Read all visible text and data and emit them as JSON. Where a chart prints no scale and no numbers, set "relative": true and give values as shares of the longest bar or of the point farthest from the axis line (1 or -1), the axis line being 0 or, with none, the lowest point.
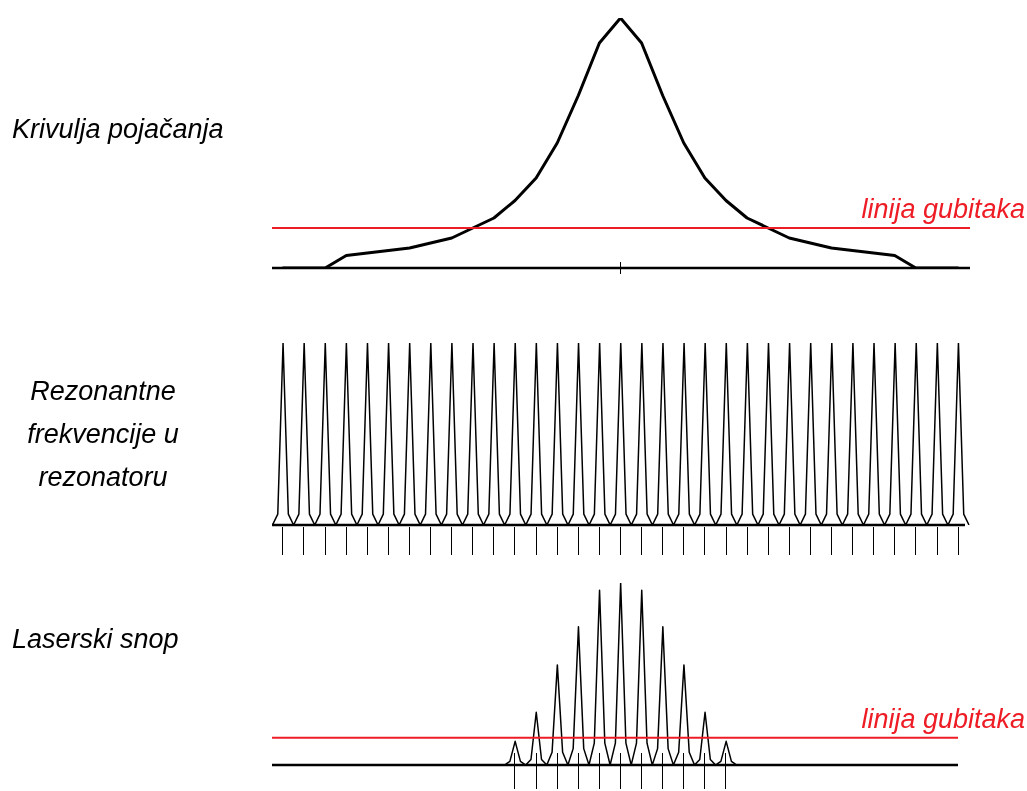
{
  "chart_data": [
    {
      "type": "line",
      "ylabel": "Krivulja pojačanja",
      "relative": true,
      "marker": "none",
      "categories": [
        null,
        null,
        null,
        null,
        null,
        null,
        null,
        null,
        null,
        null,
        null,
        null,
        null,
        null,
        null,
        null,
        null,
        null,
        null,
        null,
        null,
        null,
        null,
        null,
        null,
        null,
        null,
        null,
        null,
        null,
        null,
        null,
        null
      ],
      "series": [
        {
          "color": "#000000",
          "values": [
            0,
            0,
            0,
            0.05,
            0.06,
            0.07,
            0.08,
            0.1,
            0.12,
            0.16,
            0.2,
            0.27,
            0.36,
            0.5,
            0.69,
            0.9,
            1,
            0.9,
            0.69,
            0.5,
            0.36,
            0.27,
            0.2,
            0.16,
            0.12,
            0.1,
            0.08,
            0.07,
            0.06,
            0.05,
            0,
            0,
            0
          ]
        }
      ],
      "ref_lines": [
        {
          "axis": "y",
          "value": 0.16,
          "label": "linija gubitaka",
          "color": "#ee1c25"
        }
      ]
    },
    {
      "type": "line",
      "ylabel": "Rezonantne frekvencije u rezonatoru",
      "relative": true,
      "marker": "none",
      "categories": [
        null,
        null,
        null,
        null,
        null,
        null,
        null,
        null,
        null,
        null,
        null,
        null,
        null,
        null,
        null,
        null,
        null,
        null,
        null,
        null,
        null,
        null,
        null,
        null,
        null,
        null,
        null,
        null,
        null,
        null,
        null,
        null,
        null,
        null,
        null,
        null,
        null,
        null,
        null,
        null,
        null,
        null,
        null,
        null,
        null,
        null,
        null,
        null,
        null,
        null,
        null,
        null,
        null,
        null,
        null,
        null,
        null,
        null,
        null,
        null,
        null,
        null,
        null,
        null,
        null,
        null,
        null,
        null,
        null,
        null,
        null,
        null,
        null,
        null,
        null,
        null,
        null,
        null,
        null,
        null,
        null,
        null,
        null,
        null,
        null,
        null,
        null,
        null,
        null,
        null,
        null,
        null,
        null,
        null,
        null,
        null,
        null,
        null,
        null,
        null,
        null,
        null,
        null,
        null,
        null,
        null,
        null,
        null,
        null,
        null,
        null,
        null,
        null,
        null,
        null,
        null,
        null,
        null,
        null,
        null,
        null,
        null,
        null,
        null,
        null,
        null,
        null,
        null,
        null,
        null,
        null,
        null,
        null
      ],
      "series": [
        {
          "color": "#000000",
          "values": [
            0,
            0.06,
            1,
            0.06,
            0,
            0.06,
            1,
            0.06,
            0,
            0.06,
            1,
            0.06,
            0,
            0.06,
            1,
            0.06,
            0,
            0.06,
            1,
            0.06,
            0,
            0.06,
            1,
            0.06,
            0,
            0.06,
            1,
            0.06,
            0,
            0.06,
            1,
            0.06,
            0,
            0.06,
            1,
            0.06,
            0,
            0.06,
            1,
            0.06,
            0,
            0.06,
            1,
            0.06,
            0,
            0.06,
            1,
            0.06,
            0,
            0.06,
            1,
            0.06,
            0,
            0.06,
            1,
            0.06,
            0,
            0.06,
            1,
            0.06,
            0,
            0.06,
            1,
            0.06,
            0,
            0.06,
            1,
            0.06,
            0,
            0.06,
            1,
            0.06,
            0,
            0.06,
            1,
            0.06,
            0,
            0.06,
            1,
            0.06,
            0,
            0.06,
            1,
            0.06,
            0,
            0.06,
            1,
            0.06,
            0,
            0.06,
            1,
            0.06,
            0,
            0.06,
            1,
            0.06,
            0,
            0.06,
            1,
            0.06,
            0,
            0.06,
            1,
            0.06,
            0,
            0.06,
            1,
            0.06,
            0,
            0.06,
            1,
            0.06,
            0,
            0.06,
            1,
            0.06,
            0,
            0.06,
            1,
            0.06,
            0,
            0.06,
            1,
            0.06,
            0,
            0.06,
            1,
            0.06,
            0,
            0.06,
            1,
            0.06,
            0
          ]
        }
      ]
    },
    {
      "type": "line",
      "ylabel": "Laserski snop",
      "relative": true,
      "marker": "none",
      "categories": [
        null,
        null,
        null,
        null,
        null,
        null,
        null,
        null,
        null,
        null,
        null,
        null,
        null,
        null,
        null,
        null,
        null,
        null,
        null,
        null,
        null,
        null,
        null,
        null,
        null,
        null,
        null,
        null,
        null,
        null,
        null,
        null,
        null,
        null,
        null,
        null,
        null,
        null,
        null,
        null,
        null,
        null,
        null,
        null,
        null
      ],
      "series": [
        {
          "color": "#000000",
          "values": [
            0,
            0.02,
            0.13,
            0.02,
            0,
            0.03,
            0.29,
            0.03,
            0,
            0.07,
            0.55,
            0.07,
            0,
            0.09,
            0.76,
            0.09,
            0,
            0.12,
            0.96,
            0.12,
            0,
            0.12,
            1,
            0.12,
            0,
            0.12,
            0.96,
            0.12,
            0,
            0.09,
            0.76,
            0.09,
            0,
            0.07,
            0.55,
            0.07,
            0,
            0.03,
            0.29,
            0.03,
            0,
            0.02,
            0.13,
            0.02,
            0
          ]
        }
      ],
      "ref_lines": [
        {
          "axis": "y",
          "value": 0.15,
          "label": "linija gubitaka",
          "color": "#ee1c25"
        }
      ]
    }
  ]
}
